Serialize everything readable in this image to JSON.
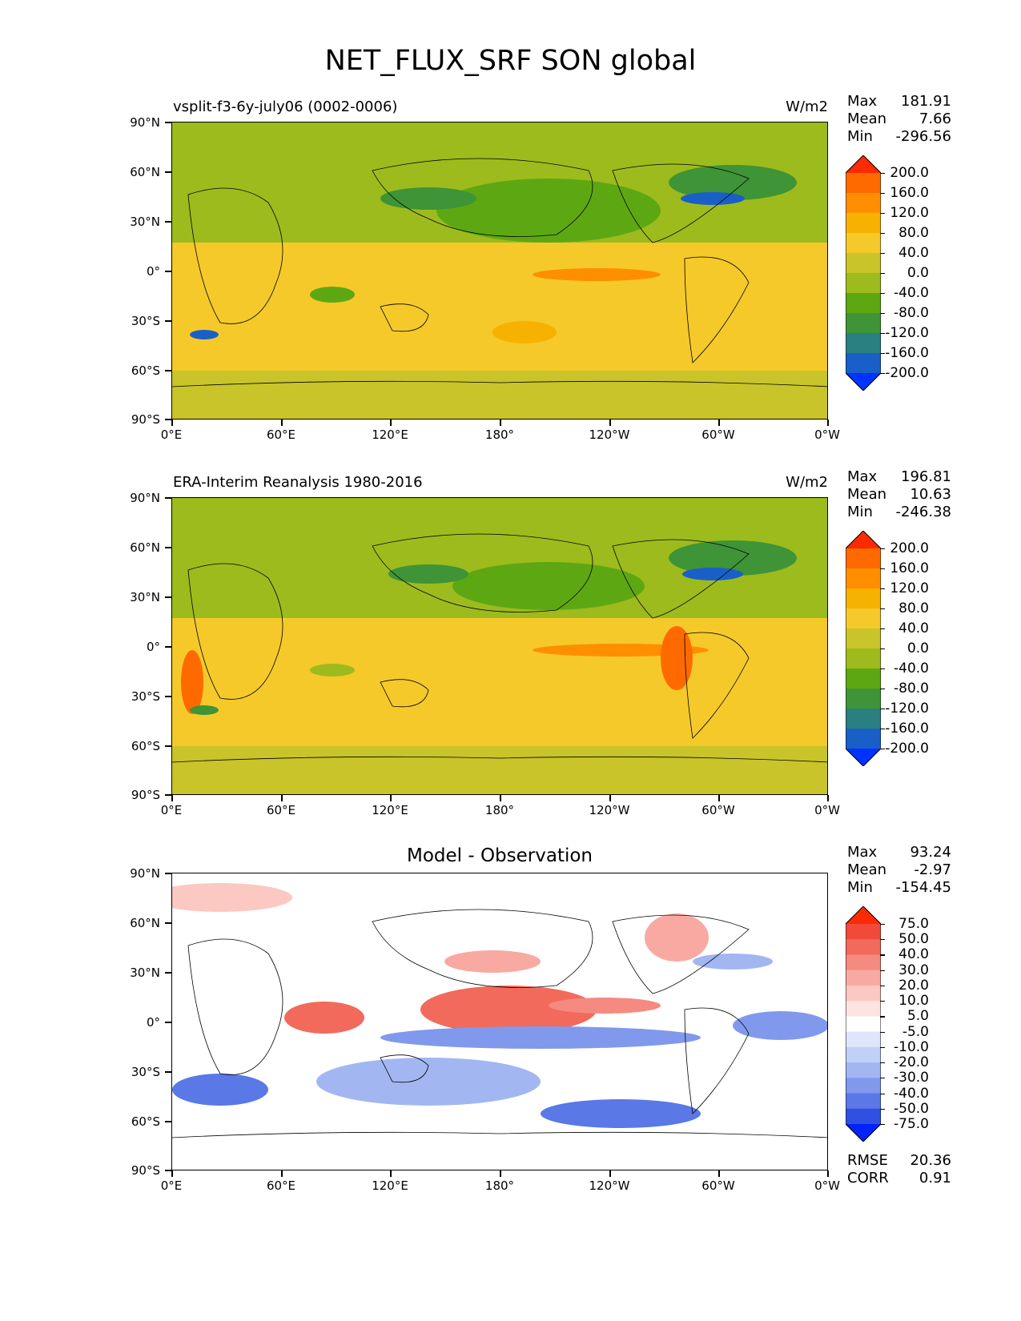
{
  "title": "NET_FLUX_SRF SON global",
  "x_ticks": [
    "0°E",
    "60°E",
    "120°E",
    "180°",
    "120°W",
    "60°W",
    "0°W"
  ],
  "y_ticks": [
    "90°N",
    "60°N",
    "30°N",
    "0°",
    "30°S",
    "60°S",
    "90°S"
  ],
  "panels": [
    {
      "left_title": "vsplit-f3-6y-july06 (0002-0006)",
      "units": "W/m2",
      "stats": {
        "max_label": "Max",
        "max": "181.91",
        "mean_label": "Mean",
        "mean": "7.66",
        "min_label": "Min",
        "min": "-296.56"
      },
      "colorbar_labels": [
        "200.0",
        "160.0",
        "120.0",
        "80.0",
        "40.0",
        "0.0",
        "-40.0",
        "-80.0",
        "-120.0",
        "-160.0",
        "-200.0"
      ],
      "colorbar_colors": [
        "#ff2a00",
        "#ff6a00",
        "#ff8f00",
        "#f7b100",
        "#f5c92a",
        "#c8c42a",
        "#9dbb1c",
        "#5da812",
        "#3e9437",
        "#2a7f80",
        "#1a5fc8",
        "#0033ff"
      ]
    },
    {
      "left_title": "ERA-Interim Reanalysis 1980-2016",
      "units": "W/m2",
      "stats": {
        "max_label": "Max",
        "max": "196.81",
        "mean_label": "Mean",
        "mean": "10.63",
        "min_label": "Min",
        "min": "-246.38"
      },
      "colorbar_labels": [
        "200.0",
        "160.0",
        "120.0",
        "80.0",
        "40.0",
        "0.0",
        "-40.0",
        "-80.0",
        "-120.0",
        "-160.0",
        "-200.0"
      ],
      "colorbar_colors": [
        "#ff2a00",
        "#ff6a00",
        "#ff8f00",
        "#f7b100",
        "#f5c92a",
        "#c8c42a",
        "#9dbb1c",
        "#5da812",
        "#3e9437",
        "#2a7f80",
        "#1a5fc8",
        "#0033ff"
      ]
    },
    {
      "center_title": "Model - Observation",
      "stats": {
        "max_label": "Max",
        "max": "93.24",
        "mean_label": "Mean",
        "mean": "-2.97",
        "min_label": "Min",
        "min": "-154.45"
      },
      "colorbar_labels": [
        "75.0",
        "50.0",
        "40.0",
        "30.0",
        "20.0",
        "10.0",
        "5.0",
        "-5.0",
        "-10.0",
        "-20.0",
        "-30.0",
        "-40.0",
        "-50.0",
        "-75.0"
      ],
      "colorbar_colors": [
        "#ff2a00",
        "#f04a3a",
        "#f26a5c",
        "#f58a80",
        "#f8aaa2",
        "#fbc8c2",
        "#fde4e0",
        "#ffffff",
        "#dfe6fb",
        "#c2cff7",
        "#a2b6f2",
        "#8099ec",
        "#5a78e6",
        "#2f50e0",
        "#0022ff"
      ],
      "rmse_label": "RMSE",
      "rmse": "20.36",
      "corr_label": "CORR",
      "corr": "0.91"
    }
  ]
}
